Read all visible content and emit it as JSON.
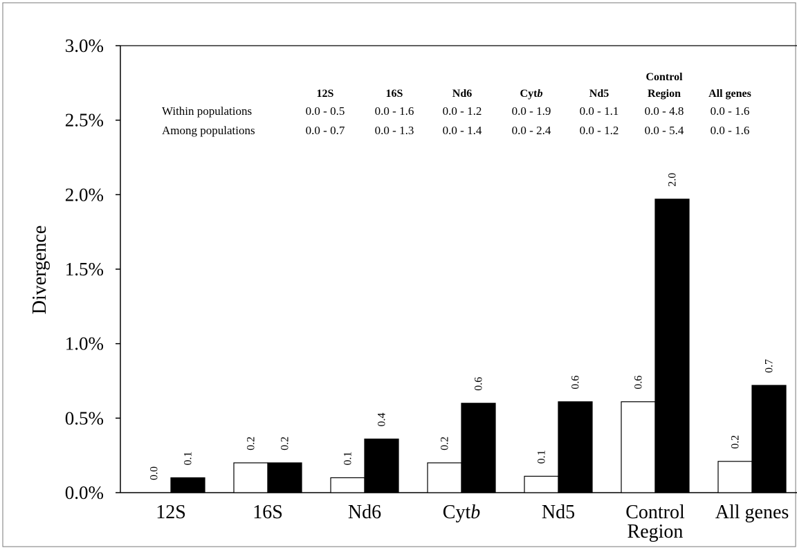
{
  "chart_data": {
    "type": "bar",
    "ylabel": "Divergence",
    "xlabel": "",
    "ylim": [
      0,
      3.0
    ],
    "y_ticks": [
      "0.0%",
      "0.5%",
      "1.0%",
      "1.5%",
      "2.0%",
      "2.5%",
      "3.0%"
    ],
    "y_tick_values": [
      0,
      0.5,
      1.0,
      1.5,
      2.0,
      2.5,
      3.0
    ],
    "categories": [
      {
        "line1": "12S",
        "line2": "",
        "italic_suffix": ""
      },
      {
        "line1": "16S",
        "line2": "",
        "italic_suffix": ""
      },
      {
        "line1": "Nd6",
        "line2": "",
        "italic_suffix": ""
      },
      {
        "line1": "Cyt",
        "line2": "",
        "italic_suffix": "b"
      },
      {
        "line1": "Nd5",
        "line2": "",
        "italic_suffix": ""
      },
      {
        "line1": "Control",
        "line2": "Region",
        "italic_suffix": ""
      },
      {
        "line1": "All genes",
        "line2": "",
        "italic_suffix": ""
      }
    ],
    "series": [
      {
        "fill": "#ffffff",
        "values": [
          0.0,
          0.2,
          0.1,
          0.2,
          0.11,
          0.61,
          0.21
        ],
        "labels": [
          "0.0",
          "0.2",
          "0.1",
          "0.2",
          "0.1",
          "0.6",
          "0.2"
        ]
      },
      {
        "fill": "#000000",
        "values": [
          0.1,
          0.2,
          0.36,
          0.6,
          0.61,
          1.97,
          0.72
        ],
        "labels": [
          "0.1",
          "0.2",
          "0.4",
          "0.6",
          "0.6",
          "2.0",
          "0.7"
        ]
      }
    ],
    "grid": false,
    "legend": "none"
  },
  "inset_table": {
    "headers": [
      {
        "line1": "",
        "text": "12S",
        "italic_suffix": ""
      },
      {
        "line1": "",
        "text": "16S",
        "italic_suffix": ""
      },
      {
        "line1": "",
        "text": "Nd6",
        "italic_suffix": ""
      },
      {
        "line1": "",
        "text": "Cyt",
        "italic_suffix": "b"
      },
      {
        "line1": "",
        "text": "Nd5",
        "italic_suffix": ""
      },
      {
        "line1": "Control",
        "text": "Region",
        "italic_suffix": ""
      },
      {
        "line1": "",
        "text": "All genes",
        "italic_suffix": ""
      }
    ],
    "rows": [
      {
        "label": "Within populations",
        "values": [
          "0.0 - 0.5",
          "0.0 - 1.6",
          "0.0 - 1.2",
          "0.0 - 1.9",
          "0.0 - 1.1",
          "0.0 - 4.8",
          "0.0 - 1.6"
        ]
      },
      {
        "label": "Among populations",
        "values": [
          "0.0 - 0.7",
          "0.0 - 1.3",
          "0.0 - 1.4",
          "0.0 - 2.4",
          "0.0 - 1.2",
          "0.0 - 5.4",
          "0.0 - 1.6"
        ]
      }
    ]
  }
}
